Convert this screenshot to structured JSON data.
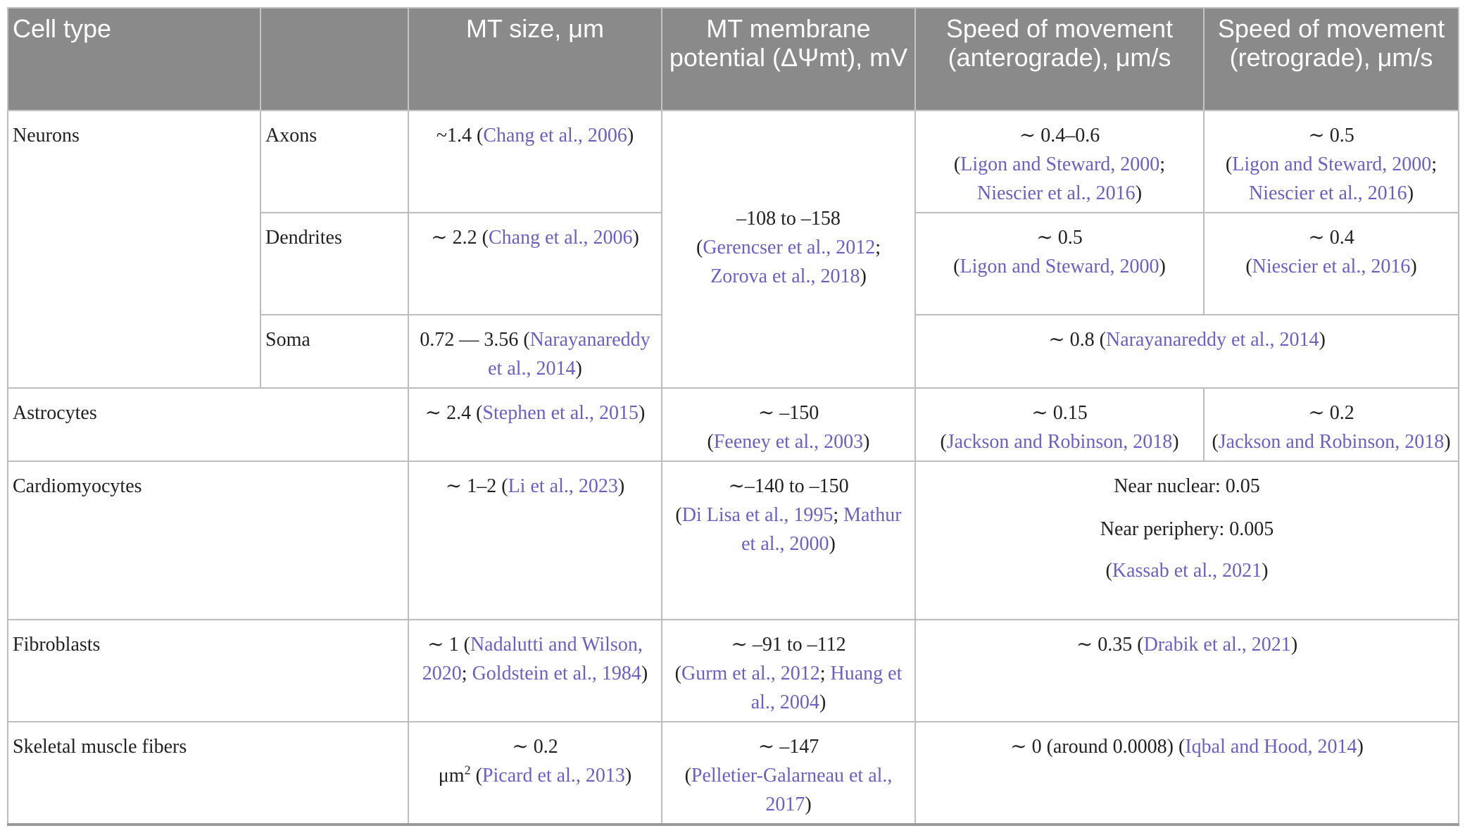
{
  "headers": {
    "cell_type": "Cell type",
    "mt_size": "MT size, μm",
    "mt_potential": "MT membrane potential (ΔΨmt), mV",
    "speed_antero": "Speed of movement (anterograde), μm/s",
    "speed_retro": "Speed of movement (retrograde), μm/s"
  },
  "rows": {
    "neurons": {
      "label": "Neurons",
      "axons": {
        "label": "Axons",
        "size_pre": "~1.4 (",
        "size_ref": "Chang et al., 2006",
        "size_post": ")",
        "antero_val": "∼ 0.4–0.6",
        "antero_ref1": "Ligon and Steward, 2000",
        "antero_ref2": "Niescier et al., 2016",
        "retro_val": "∼ 0.5",
        "retro_ref1": "Ligon and Steward, 2000",
        "retro_ref2": "Niescier et al., 2016"
      },
      "dendrites": {
        "label": "Dendrites",
        "size_pre": "∼ 2.2 (",
        "size_ref": "Chang et al., 2006",
        "size_post": ")",
        "antero_val": "∼ 0.5",
        "antero_ref": "Ligon and Steward, 2000",
        "retro_val": "∼ 0.4",
        "retro_ref": "Niescier et al., 2016"
      },
      "soma": {
        "label": "Soma",
        "size_pre": "0.72 — 3.56 (",
        "size_ref": "Narayanareddy et al., 2014",
        "size_post": ")",
        "speed_pre": "∼ 0.8 (",
        "speed_ref": "Narayanareddy et al., 2014",
        "speed_post": ")"
      },
      "potential_val": "–108 to –158",
      "potential_ref1": "Gerencser et al., 2012",
      "potential_ref2": "Zorova et al., 2018"
    },
    "astrocytes": {
      "label": "Astrocytes",
      "size_pre": "∼ 2.4 (",
      "size_ref": "Stephen et al., 2015",
      "size_post": ")",
      "potential_val": "∼ –150",
      "potential_ref": "Feeney et al., 2003",
      "antero_val": "∼ 0.15",
      "antero_ref": "Jackson and Robinson, 2018",
      "retro_val": "∼ 0.2",
      "retro_ref": "Jackson and Robinson, 2018"
    },
    "cardiomyocytes": {
      "label": "Cardiomyocytes",
      "size_pre": "∼ 1–2 (",
      "size_ref": "Li et al., 2023",
      "size_post": ")",
      "potential_val": "∼–140 to –150",
      "potential_ref1": "Di Lisa et al., 1995",
      "potential_ref2": "Mathur et al., 2000",
      "speed_line1": "Near nuclear: 0.05",
      "speed_line2": "Near periphery: 0.005",
      "speed_ref": "Kassab et al., 2021"
    },
    "fibroblasts": {
      "label": "Fibroblasts",
      "size_pre": "∼ 1 (",
      "size_ref1": "Nadalutti and Wilson, 2020",
      "size_ref2": "Goldstein et al., 1984",
      "potential_val": "∼ –91 to –112",
      "potential_ref1": "Gurm et al., 2012",
      "potential_ref2": "Huang et al., 2004",
      "speed_pre": "∼ 0.35 (",
      "speed_ref": "Drabik et al., 2021",
      "speed_post": ")"
    },
    "skeletal": {
      "label": "Skeletal muscle fibers",
      "size_val": "∼ 0.2",
      "size_unit": "μm",
      "size_sup": "2",
      "size_ref": "Picard et al., 2013",
      "potential_val": "∼ –147",
      "potential_ref": "Pelletier-Galarneau et al., 2017",
      "speed_pre": "∼ 0 (around 0.0008) (",
      "speed_ref": "Iqbal and Hood, 2014",
      "speed_post": ")"
    }
  }
}
